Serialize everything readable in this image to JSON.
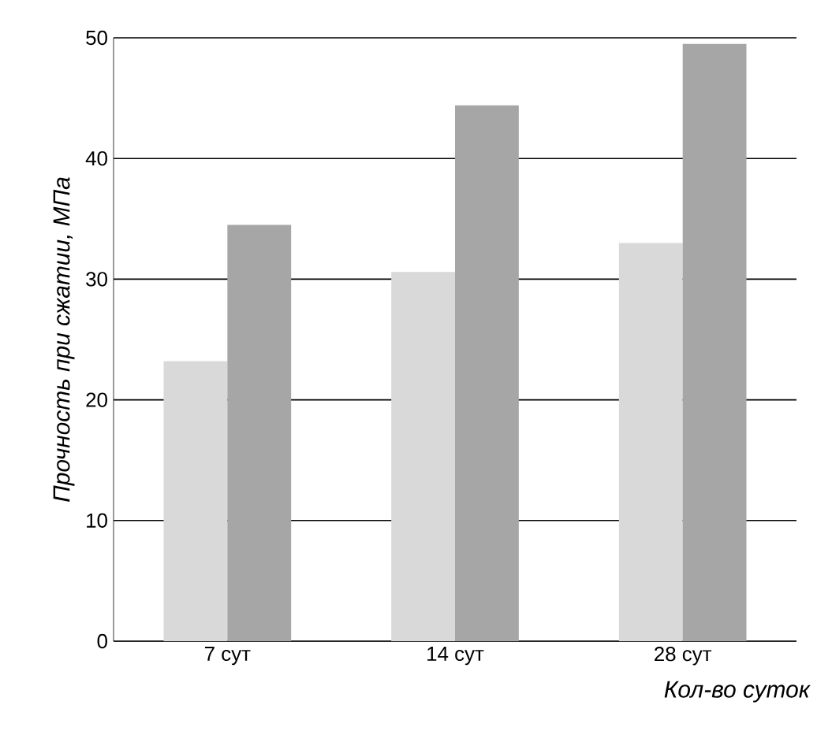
{
  "chart_data": {
    "type": "bar",
    "ylabel": "Прочность при сжатии, МПа",
    "xlabel": "Кол-во суток",
    "categories": [
      "7 сут",
      "14 сут",
      "28 сут"
    ],
    "series": [
      {
        "color": "#d9d9d9",
        "values": [
          23.2,
          30.6,
          33.0
        ]
      },
      {
        "color": "#a6a6a6",
        "values": [
          34.5,
          44.4,
          49.5
        ]
      }
    ],
    "ylim": [
      0,
      50
    ],
    "yticks": [
      0,
      10,
      20,
      30,
      40,
      50
    ],
    "grid": "y"
  }
}
